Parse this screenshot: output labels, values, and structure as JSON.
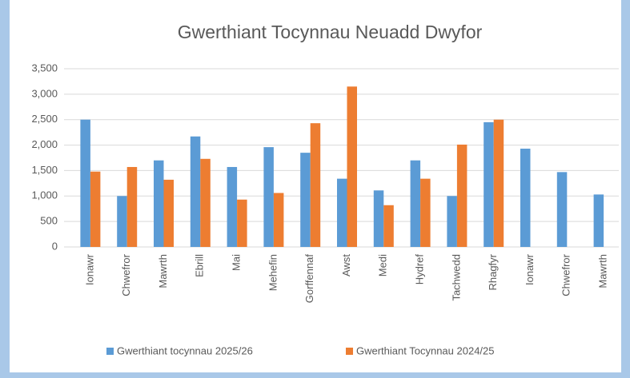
{
  "chart_data": {
    "type": "bar",
    "title": "Gwerthiant Tocynnau Neuadd Dwyfor",
    "categories": [
      "Ionawr",
      "Chwefror",
      "Mawrth",
      "Ebrill",
      "Mai",
      "Mehefin",
      "Gorffennaf",
      "Awst",
      "Medi",
      "Hydref",
      "Tachwedd",
      "Rhagfyr",
      "Ionawr",
      "Chwefror",
      "Mawrth"
    ],
    "series": [
      {
        "name": "Gwerthiant tocynnau 2025/26",
        "color": "#5b9bd5",
        "values": [
          2500,
          1000,
          1700,
          2170,
          1570,
          1960,
          1850,
          1340,
          1110,
          1700,
          1000,
          2450,
          1930,
          1470,
          1030
        ]
      },
      {
        "name": "Gwerthiant Tocynnau 2024/25",
        "color": "#ed7d31",
        "values": [
          1480,
          1570,
          1320,
          1730,
          930,
          1060,
          2430,
          3150,
          820,
          1340,
          2010,
          2500,
          null,
          null,
          null
        ]
      }
    ],
    "ylim": [
      0,
      3500
    ],
    "yticks": [
      0,
      500,
      {
        "value": 1000,
        "label": "1,000"
      },
      {
        "value": 1500,
        "label": "1,500"
      },
      {
        "value": 2000,
        "label": "2,000"
      },
      {
        "value": 2500,
        "label": "2,500"
      },
      {
        "value": 3000,
        "label": "3,000"
      },
      {
        "value": 3500,
        "label": "3,500"
      }
    ],
    "grid": true,
    "legend": "bottom"
  }
}
